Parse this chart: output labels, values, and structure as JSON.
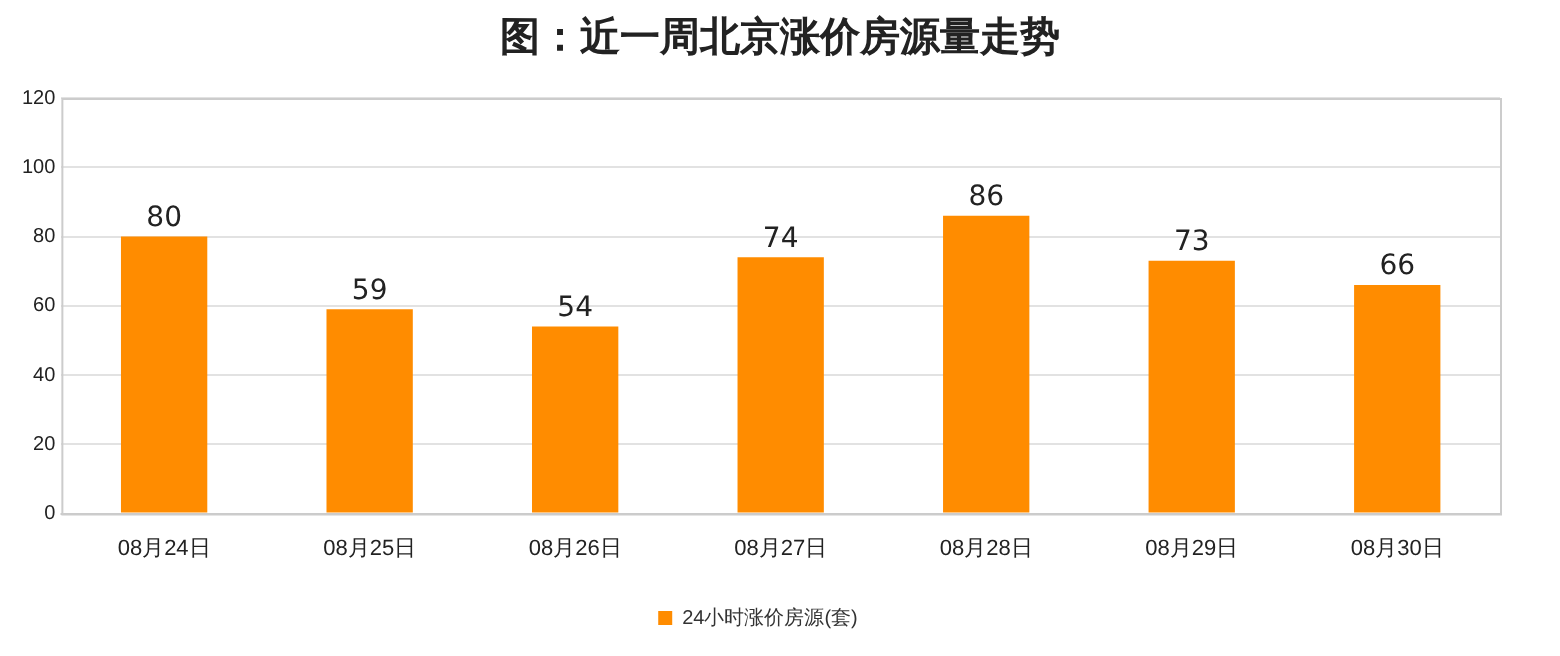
{
  "chart_data": {
    "type": "bar",
    "title": "图：近一周北京涨价房源量走势",
    "categories": [
      "08月24日",
      "08月25日",
      "08月26日",
      "08月27日",
      "08月28日",
      "08月29日",
      "08月30日"
    ],
    "series": [
      {
        "name": "24小时涨价房源(套)",
        "color": "#ff8c00",
        "values": [
          80,
          59,
          54,
          74,
          86,
          73,
          66
        ]
      }
    ],
    "ylim": [
      0,
      120
    ],
    "yticks": [
      0,
      20,
      40,
      60,
      80,
      100,
      120
    ],
    "grid": "y",
    "legend": "bottom",
    "data_labels": true
  }
}
